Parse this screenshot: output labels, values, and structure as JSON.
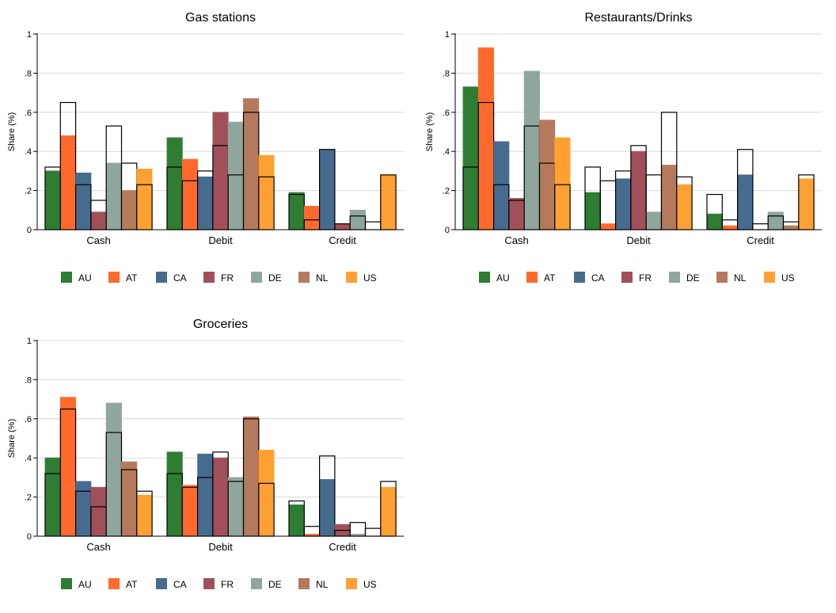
{
  "figure": {
    "ylabel": "Share (%)",
    "y_ticks": [
      {
        "value": 0,
        "label": "0"
      },
      {
        "value": 0.2,
        "label": ".2"
      },
      {
        "value": 0.4,
        "label": ".4"
      },
      {
        "value": 0.6,
        "label": ".6"
      },
      {
        "value": 0.8,
        "label": ".8"
      },
      {
        "value": 1,
        "label": "1"
      }
    ],
    "categories": [
      "Cash",
      "Debit",
      "Credit"
    ],
    "legend": [
      {
        "name": "AU",
        "color": "#2e7d32"
      },
      {
        "name": "AT",
        "color": "#ff6a2c"
      },
      {
        "name": "CA",
        "color": "#456c8f"
      },
      {
        "name": "FR",
        "color": "#a1505a"
      },
      {
        "name": "DE",
        "color": "#8fa69c"
      },
      {
        "name": "NL",
        "color": "#b57a5c"
      },
      {
        "name": "US",
        "color": "#ffa033"
      }
    ]
  },
  "chart_data": [
    {
      "type": "bar",
      "title": "Gas stations",
      "ylabel": "Share (%)",
      "ylim": [
        0,
        1
      ],
      "grid": true,
      "legend_position": "bottom",
      "categories": [
        "Cash",
        "Debit",
        "Credit"
      ],
      "series": [
        {
          "name": "AU",
          "color": "#2e7d32",
          "values": [
            0.3,
            0.47,
            0.19
          ],
          "outline_values": [
            0.32,
            0.32,
            0.18
          ]
        },
        {
          "name": "AT",
          "color": "#ff6a2c",
          "values": [
            0.48,
            0.36,
            0.12
          ],
          "outline_values": [
            0.65,
            0.25,
            0.05
          ]
        },
        {
          "name": "CA",
          "color": "#456c8f",
          "values": [
            0.29,
            0.27,
            0.41
          ],
          "outline_values": [
            0.23,
            0.3,
            0.41
          ]
        },
        {
          "name": "FR",
          "color": "#a1505a",
          "values": [
            0.09,
            0.6,
            0.03
          ],
          "outline_values": [
            0.15,
            0.43,
            0.03
          ]
        },
        {
          "name": "DE",
          "color": "#8fa69c",
          "values": [
            0.34,
            0.55,
            0.1
          ],
          "outline_values": [
            0.53,
            0.28,
            0.07
          ]
        },
        {
          "name": "NL",
          "color": "#b57a5c",
          "values": [
            0.2,
            0.67,
            0.0
          ],
          "outline_values": [
            0.34,
            0.6,
            0.04
          ]
        },
        {
          "name": "US",
          "color": "#ffa033",
          "values": [
            0.31,
            0.38,
            0.28
          ],
          "outline_values": [
            0.23,
            0.27,
            0.28
          ]
        }
      ]
    },
    {
      "type": "bar",
      "title": "Restaurants/Drinks",
      "ylabel": "Share (%)",
      "ylim": [
        0,
        1
      ],
      "grid": true,
      "legend_position": "bottom",
      "categories": [
        "Cash",
        "Debit",
        "Credit"
      ],
      "series": [
        {
          "name": "AU",
          "color": "#2e7d32",
          "values": [
            0.73,
            0.19,
            0.08
          ],
          "outline_values": [
            0.32,
            0.32,
            0.18
          ]
        },
        {
          "name": "AT",
          "color": "#ff6a2c",
          "values": [
            0.93,
            0.03,
            0.02
          ],
          "outline_values": [
            0.65,
            0.25,
            0.05
          ]
        },
        {
          "name": "CA",
          "color": "#456c8f",
          "values": [
            0.45,
            0.26,
            0.28
          ],
          "outline_values": [
            0.23,
            0.3,
            0.41
          ]
        },
        {
          "name": "FR",
          "color": "#a1505a",
          "values": [
            0.16,
            0.4,
            0.0
          ],
          "outline_values": [
            0.15,
            0.43,
            0.03
          ]
        },
        {
          "name": "DE",
          "color": "#8fa69c",
          "values": [
            0.81,
            0.09,
            0.09
          ],
          "outline_values": [
            0.53,
            0.28,
            0.07
          ]
        },
        {
          "name": "NL",
          "color": "#b57a5c",
          "values": [
            0.56,
            0.33,
            0.02
          ],
          "outline_values": [
            0.34,
            0.6,
            0.04
          ]
        },
        {
          "name": "US",
          "color": "#ffa033",
          "values": [
            0.47,
            0.23,
            0.26
          ],
          "outline_values": [
            0.23,
            0.27,
            0.28
          ]
        }
      ]
    },
    {
      "type": "bar",
      "title": "Groceries",
      "ylabel": "Share (%)",
      "ylim": [
        0,
        1
      ],
      "grid": true,
      "legend_position": "bottom",
      "categories": [
        "Cash",
        "Debit",
        "Credit"
      ],
      "series": [
        {
          "name": "AU",
          "color": "#2e7d32",
          "values": [
            0.4,
            0.43,
            0.16
          ],
          "outline_values": [
            0.32,
            0.32,
            0.18
          ]
        },
        {
          "name": "AT",
          "color": "#ff6a2c",
          "values": [
            0.71,
            0.26,
            0.01
          ],
          "outline_values": [
            0.65,
            0.25,
            0.05
          ]
        },
        {
          "name": "CA",
          "color": "#456c8f",
          "values": [
            0.28,
            0.42,
            0.29
          ],
          "outline_values": [
            0.23,
            0.3,
            0.41
          ]
        },
        {
          "name": "FR",
          "color": "#a1505a",
          "values": [
            0.25,
            0.4,
            0.06
          ],
          "outline_values": [
            0.15,
            0.43,
            0.03
          ]
        },
        {
          "name": "DE",
          "color": "#8fa69c",
          "values": [
            0.68,
            0.3,
            0.01
          ],
          "outline_values": [
            0.53,
            0.28,
            0.07
          ]
        },
        {
          "name": "NL",
          "color": "#b57a5c",
          "values": [
            0.38,
            0.61,
            0.0
          ],
          "outline_values": [
            0.34,
            0.6,
            0.04
          ]
        },
        {
          "name": "US",
          "color": "#ffa033",
          "values": [
            0.21,
            0.44,
            0.25
          ],
          "outline_values": [
            0.23,
            0.27,
            0.28
          ]
        }
      ]
    }
  ]
}
